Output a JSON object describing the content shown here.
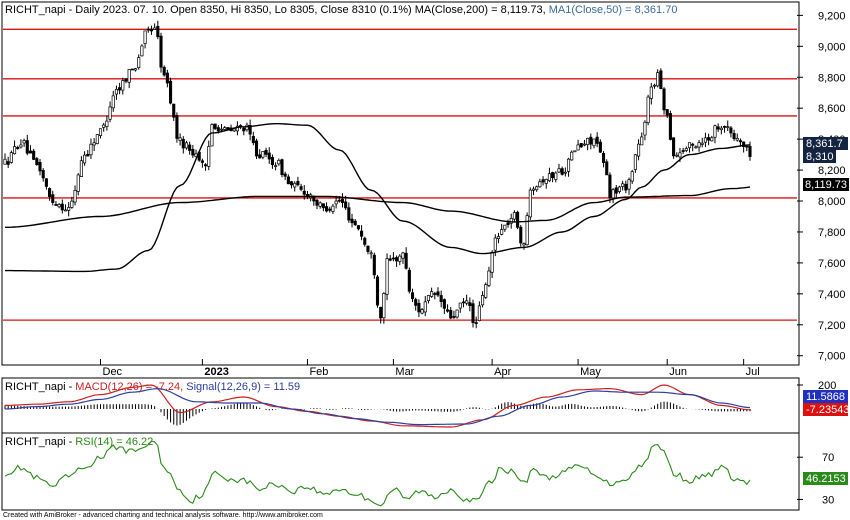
{
  "header": {
    "main": {
      "name": "RICHT_napi",
      "info": " - Daily 2023. 07. 10. Open 8350, Hi 8350, Lo 8305, Close 8310 (0.1%) ",
      "ma200": "MA(Close,200) = 8,119.73, ",
      "ma50": "MA1(Close,50) = 8,361.70"
    },
    "macd": {
      "name": "RICHT_napi - ",
      "macd": "MACD(12,26) = -7.24, ",
      "signal": "Signal(12,26,9) = 11.59"
    },
    "rsi": {
      "name": "RICHT_napi - ",
      "rsi": "RSI(14) = 46.22"
    }
  },
  "footer": "Created with AmiBroker - advanced charting and technical analysis software. http://www.amibroker.com",
  "chart_data": [
    {
      "type": "candlestick",
      "x_labels": [
        "Dec",
        "2023",
        "Feb",
        "Mar",
        "Apr",
        "May",
        "Jun",
        "Jul"
      ],
      "y_ticks": [
        "9,200",
        "9,000",
        "8,800",
        "8,600",
        "8,400",
        "8,200",
        "8,000",
        "7,800",
        "7,600",
        "7,400",
        "7,200",
        "7,000"
      ],
      "y_tick_values": [
        9200,
        9000,
        8800,
        8600,
        8400,
        8200,
        8000,
        7800,
        7600,
        7400,
        7200,
        7000
      ],
      "ylim": [
        6940,
        9280
      ],
      "horizontal_lines": [
        9110,
        8790,
        8550,
        8020,
        7230
      ],
      "value_labels": [
        "8,361.7",
        "8,310",
        "8,119.73"
      ],
      "ma200_anchors": [
        [
          0,
          7830
        ],
        [
          30,
          7900
        ],
        [
          55,
          7990
        ],
        [
          80,
          8030
        ],
        [
          100,
          8030
        ],
        [
          125,
          7990
        ],
        [
          140,
          7935
        ],
        [
          160,
          7865
        ],
        [
          170,
          7875
        ],
        [
          185,
          7990
        ],
        [
          195,
          8025
        ],
        [
          215,
          8035
        ],
        [
          228,
          8080
        ],
        [
          245,
          8120
        ]
      ],
      "ma50_anchors": [
        [
          0,
          7550
        ],
        [
          25,
          7545
        ],
        [
          35,
          7560
        ],
        [
          45,
          7680
        ],
        [
          55,
          8100
        ],
        [
          65,
          8440
        ],
        [
          75,
          8480
        ],
        [
          85,
          8500
        ],
        [
          95,
          8490
        ],
        [
          105,
          8330
        ],
        [
          115,
          8070
        ],
        [
          125,
          7870
        ],
        [
          140,
          7700
        ],
        [
          150,
          7660
        ],
        [
          163,
          7700
        ],
        [
          175,
          7800
        ],
        [
          185,
          7900
        ],
        [
          195,
          8010
        ],
        [
          200,
          8090
        ],
        [
          207,
          8200
        ],
        [
          215,
          8300
        ],
        [
          225,
          8340
        ],
        [
          234,
          8362
        ]
      ],
      "price_anchors": [
        [
          0,
          8250
        ],
        [
          5,
          8380
        ],
        [
          10,
          8230
        ],
        [
          15,
          8000
        ],
        [
          20,
          7950
        ],
        [
          25,
          8300
        ],
        [
          30,
          8450
        ],
        [
          35,
          8720
        ],
        [
          40,
          8850
        ],
        [
          45,
          9100
        ],
        [
          47,
          9130
        ],
        [
          50,
          8800
        ],
        [
          55,
          8380
        ],
        [
          60,
          8310
        ],
        [
          63,
          8200
        ],
        [
          65,
          8500
        ],
        [
          70,
          8450
        ],
        [
          75,
          8480
        ],
        [
          80,
          8300
        ],
        [
          85,
          8250
        ],
        [
          90,
          8100
        ],
        [
          95,
          8050
        ],
        [
          100,
          7950
        ],
        [
          105,
          8000
        ],
        [
          110,
          7850
        ],
        [
          115,
          7650
        ],
        [
          118,
          7250
        ],
        [
          120,
          7600
        ],
        [
          125,
          7650
        ],
        [
          128,
          7350
        ],
        [
          130,
          7300
        ],
        [
          135,
          7400
        ],
        [
          140,
          7250
        ],
        [
          145,
          7350
        ],
        [
          148,
          7200
        ],
        [
          150,
          7400
        ],
        [
          155,
          7800
        ],
        [
          160,
          7900
        ],
        [
          163,
          7700
        ],
        [
          165,
          8100
        ],
        [
          170,
          8150
        ],
        [
          175,
          8200
        ],
        [
          180,
          8350
        ],
        [
          185,
          8400
        ],
        [
          188,
          8250
        ],
        [
          190,
          8050
        ],
        [
          195,
          8100
        ],
        [
          200,
          8400
        ],
        [
          203,
          8750
        ],
        [
          205,
          8800
        ],
        [
          208,
          8550
        ],
        [
          210,
          8300
        ],
        [
          215,
          8350
        ],
        [
          220,
          8400
        ],
        [
          225,
          8500
        ],
        [
          230,
          8400
        ],
        [
          234,
          8310
        ]
      ]
    },
    {
      "type": "line",
      "name": "MACD panel",
      "y_ticks": [
        "200"
      ],
      "y_tick_values": [
        200
      ],
      "ylim": [
        -200,
        250
      ],
      "value_labels": [
        "11.5868",
        "-7.23543"
      ],
      "macd_anchors": [
        [
          0,
          30
        ],
        [
          10,
          40
        ],
        [
          20,
          60
        ],
        [
          30,
          120
        ],
        [
          40,
          180
        ],
        [
          46,
          200
        ],
        [
          55,
          -30
        ],
        [
          65,
          60
        ],
        [
          75,
          100
        ],
        [
          85,
          20
        ],
        [
          95,
          -20
        ],
        [
          105,
          -60
        ],
        [
          115,
          -100
        ],
        [
          125,
          -140
        ],
        [
          140,
          -150
        ],
        [
          150,
          -90
        ],
        [
          160,
          30
        ],
        [
          170,
          100
        ],
        [
          180,
          160
        ],
        [
          190,
          170
        ],
        [
          200,
          120
        ],
        [
          207,
          200
        ],
        [
          215,
          120
        ],
        [
          225,
          30
        ],
        [
          234,
          -7
        ]
      ],
      "signal_anchors": [
        [
          0,
          0
        ],
        [
          10,
          20
        ],
        [
          20,
          40
        ],
        [
          30,
          80
        ],
        [
          40,
          140
        ],
        [
          48,
          170
        ],
        [
          60,
          60
        ],
        [
          70,
          50
        ],
        [
          80,
          50
        ],
        [
          90,
          0
        ],
        [
          100,
          -40
        ],
        [
          110,
          -80
        ],
        [
          120,
          -110
        ],
        [
          130,
          -130
        ],
        [
          145,
          -125
        ],
        [
          155,
          -60
        ],
        [
          165,
          30
        ],
        [
          175,
          100
        ],
        [
          185,
          150
        ],
        [
          195,
          140
        ],
        [
          205,
          140
        ],
        [
          215,
          120
        ],
        [
          225,
          50
        ],
        [
          234,
          12
        ]
      ]
    },
    {
      "type": "line",
      "name": "RSI panel",
      "y_ticks": [
        "70",
        "30"
      ],
      "y_tick_values": [
        70,
        30
      ],
      "ylim": [
        20,
        92
      ],
      "value_labels": [
        "46.2153"
      ],
      "rsi_anchors": [
        [
          0,
          55
        ],
        [
          5,
          60
        ],
        [
          10,
          50
        ],
        [
          15,
          42
        ],
        [
          20,
          52
        ],
        [
          25,
          60
        ],
        [
          30,
          70
        ],
        [
          35,
          80
        ],
        [
          40,
          75
        ],
        [
          45,
          82
        ],
        [
          47,
          85
        ],
        [
          50,
          60
        ],
        [
          55,
          40
        ],
        [
          58,
          28
        ],
        [
          62,
          35
        ],
        [
          66,
          55
        ],
        [
          70,
          50
        ],
        [
          75,
          48
        ],
        [
          80,
          40
        ],
        [
          85,
          45
        ],
        [
          90,
          38
        ],
        [
          95,
          42
        ],
        [
          100,
          35
        ],
        [
          105,
          40
        ],
        [
          110,
          35
        ],
        [
          115,
          30
        ],
        [
          118,
          25
        ],
        [
          122,
          40
        ],
        [
          126,
          30
        ],
        [
          130,
          38
        ],
        [
          135,
          32
        ],
        [
          140,
          40
        ],
        [
          145,
          30
        ],
        [
          148,
          28
        ],
        [
          152,
          45
        ],
        [
          156,
          60
        ],
        [
          160,
          55
        ],
        [
          163,
          45
        ],
        [
          166,
          60
        ],
        [
          170,
          50
        ],
        [
          175,
          55
        ],
        [
          180,
          62
        ],
        [
          185,
          55
        ],
        [
          190,
          45
        ],
        [
          195,
          50
        ],
        [
          200,
          62
        ],
        [
          204,
          82
        ],
        [
          207,
          75
        ],
        [
          210,
          55
        ],
        [
          215,
          48
        ],
        [
          220,
          52
        ],
        [
          225,
          60
        ],
        [
          230,
          48
        ],
        [
          234,
          46
        ]
      ]
    }
  ]
}
